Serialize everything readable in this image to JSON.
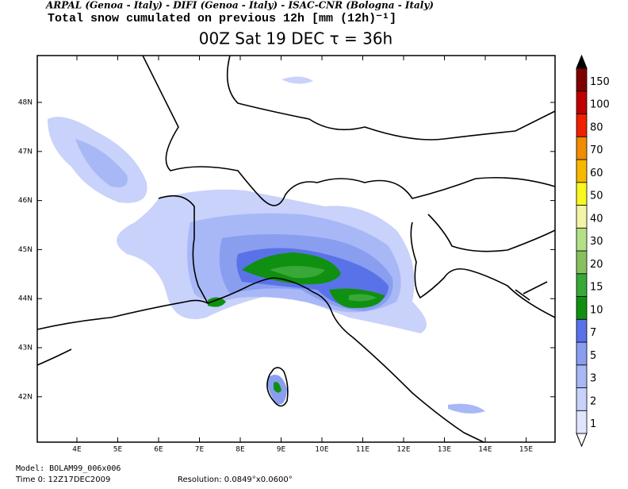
{
  "header": {
    "credits": "ARPAL (Genoa - Italy)  -  DIFI (Genoa - Italy)  -  ISAC-CNR (Bologna - Italy)",
    "subtitle": "Total snow cumulated on previous 12h [mm (12h)⁻¹]",
    "title": "00Z Sat 19 DEC  τ = 36h"
  },
  "map": {
    "lon_labels": [
      "4E",
      "5E",
      "6E",
      "7E",
      "8E",
      "9E",
      "10E",
      "11E",
      "12E",
      "13E",
      "14E",
      "15E"
    ],
    "lat_labels": [
      "48N",
      "47N",
      "46N",
      "45N",
      "44N",
      "43N",
      "42N"
    ]
  },
  "colorbar": {
    "levels": [
      1,
      2,
      3,
      5,
      7,
      10,
      15,
      20,
      30,
      40,
      50,
      60,
      70,
      80,
      100,
      150
    ],
    "colors": [
      "#e0e4fc",
      "#c8d2fa",
      "#a8b8f6",
      "#8a9ef0",
      "#5a72e8",
      "#109010",
      "#38a838",
      "#88c060",
      "#b4e088",
      "#f4f4a8",
      "#f8f820",
      "#f8b800",
      "#f08c00",
      "#f02000",
      "#c00000",
      "#800000"
    ]
  },
  "footer": {
    "model": "Model: BOLAM99_006x006",
    "time": "Time 0: 12Z17DEC2009",
    "resolution": "Resolution: 0.0849°x0.0600°"
  }
}
